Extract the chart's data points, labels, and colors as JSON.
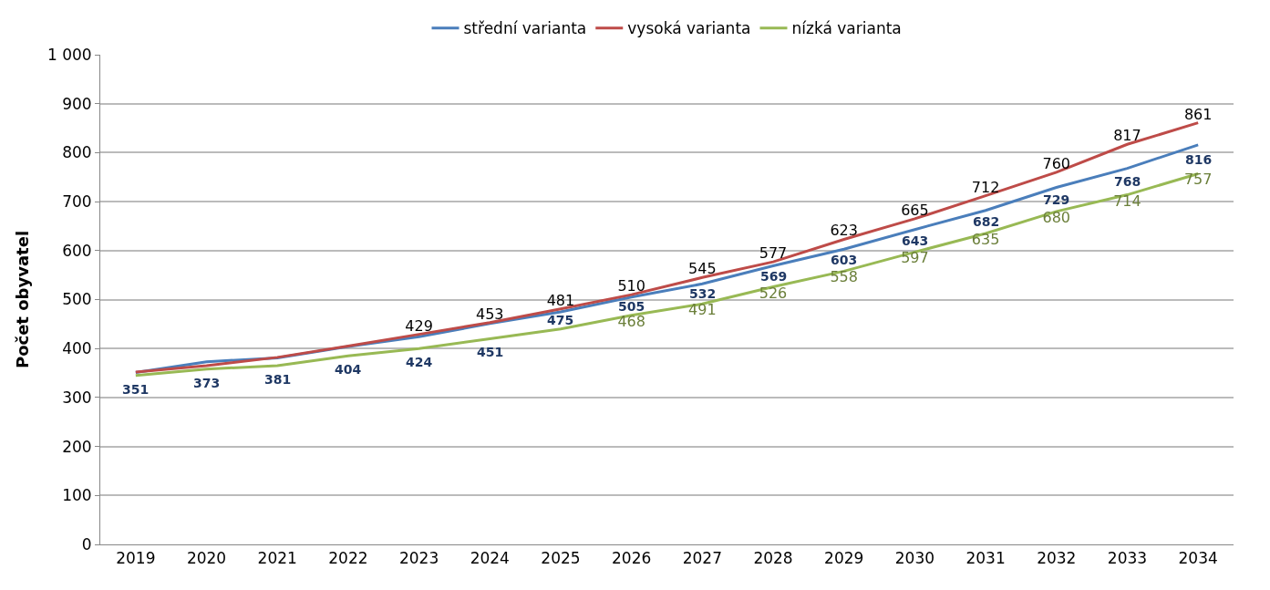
{
  "chart_data": {
    "type": "line",
    "ylabel": "Počet obyvatel",
    "categories": [
      "2019",
      "2020",
      "2021",
      "2022",
      "2023",
      "2024",
      "2025",
      "2026",
      "2027",
      "2028",
      "2029",
      "2030",
      "2031",
      "2032",
      "2033",
      "2034"
    ],
    "series": [
      {
        "name": "střední varianta",
        "color": "#4a7ebb",
        "values": [
          351,
          373,
          381,
          404,
          424,
          451,
          475,
          505,
          532,
          569,
          603,
          643,
          682,
          729,
          768,
          816
        ],
        "value_labels": [
          "351",
          "373",
          "381",
          "404",
          "424",
          "451",
          "475",
          "505",
          "532",
          "569",
          "603",
          "643",
          "682",
          "729",
          "768",
          "816"
        ]
      },
      {
        "name": "vysoká varianta",
        "color": "#be4b48",
        "values": [
          352,
          365,
          382,
          405,
          429,
          453,
          481,
          510,
          545,
          577,
          623,
          665,
          712,
          760,
          817,
          861
        ],
        "value_labels": [
          null,
          null,
          null,
          null,
          "429",
          "453",
          "481",
          "510",
          "545",
          "577",
          "623",
          "665",
          "712",
          "760",
          "817",
          "861"
        ]
      },
      {
        "name": "nízká varianta",
        "color": "#98b954",
        "values": [
          345,
          358,
          365,
          385,
          400,
          420,
          440,
          468,
          491,
          526,
          558,
          597,
          635,
          680,
          714,
          757
        ],
        "value_labels": [
          null,
          null,
          null,
          null,
          null,
          null,
          null,
          "468",
          "491",
          "526",
          "558",
          "597",
          "635",
          "680",
          "714",
          "757"
        ]
      }
    ],
    "ylim": [
      0,
      1000
    ],
    "yticks": [
      0,
      100,
      200,
      300,
      400,
      500,
      600,
      700,
      800,
      900,
      {
        "value": 1000,
        "label": "1 000"
      }
    ],
    "grid": "y",
    "legend": "top",
    "marker": "none",
    "line_style": "solid"
  }
}
